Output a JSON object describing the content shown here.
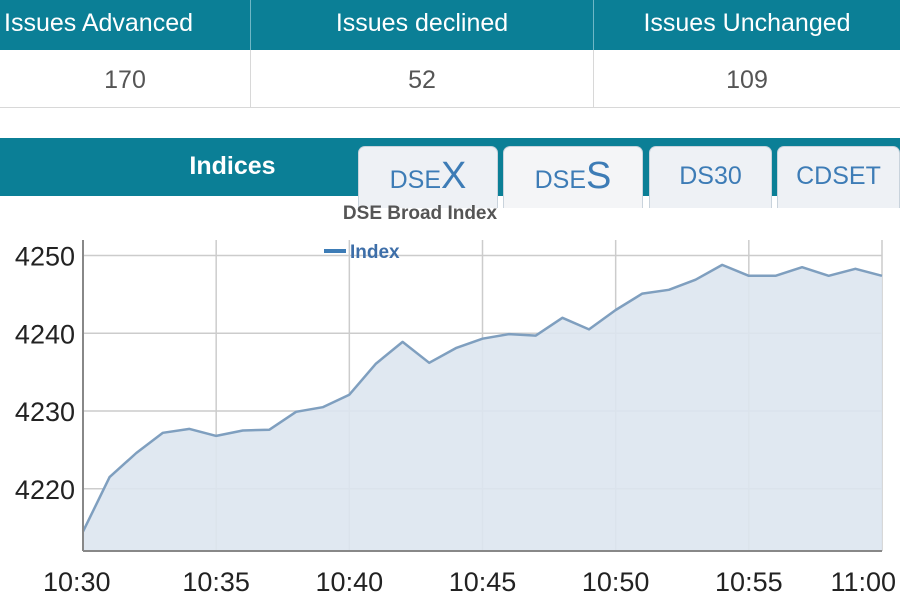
{
  "stats": {
    "headers": [
      "Issues Advanced",
      "Issues declined",
      "Issues Unchanged"
    ],
    "values": [
      "170",
      "52",
      "109"
    ]
  },
  "indices": {
    "title": "Indices",
    "tabs": [
      {
        "label": "DSE",
        "suffix": "X",
        "active": false
      },
      {
        "label": "DSE",
        "suffix": "S",
        "active": true
      },
      {
        "label": "DS30",
        "suffix": "",
        "active": false
      },
      {
        "label": "CDSET",
        "suffix": "",
        "active": false
      }
    ]
  },
  "colors": {
    "header_bg": "#0b7f96",
    "tab_text": "#3d7cb6",
    "series_line": "#7f9fbf",
    "series_fill": "#dde5ef"
  },
  "chart_data": {
    "type": "area",
    "title": "DSE Broad Index",
    "legend": "top",
    "grid": true,
    "xlabel": "",
    "ylabel": "",
    "x_ticks": [
      "10:30",
      "10:35",
      "10:40",
      "10:45",
      "10:50",
      "10:55",
      "11:00"
    ],
    "y_ticks": [
      4220,
      4230,
      4240,
      4250
    ],
    "xlim": [
      "10:30",
      "11:00"
    ],
    "ylim": [
      4212,
      4252
    ],
    "series": [
      {
        "name": "Index",
        "x": [
          "10:30",
          "10:31",
          "10:32",
          "10:33",
          "10:34",
          "10:35",
          "10:36",
          "10:37",
          "10:38",
          "10:39",
          "10:40",
          "10:41",
          "10:42",
          "10:43",
          "10:44",
          "10:45",
          "10:46",
          "10:47",
          "10:48",
          "10:49",
          "10:50",
          "10:51",
          "10:52",
          "10:53",
          "10:54",
          "10:55",
          "10:56",
          "10:57",
          "10:58",
          "10:59",
          "11:00"
        ],
        "values": [
          4214.5,
          4221.5,
          4224.6,
          4227.2,
          4227.7,
          4226.8,
          4227.5,
          4227.6,
          4229.9,
          4230.5,
          4232.1,
          4236.1,
          4238.9,
          4236.2,
          4238.1,
          4239.3,
          4239.9,
          4239.7,
          4242.0,
          4240.5,
          4243.0,
          4245.1,
          4245.6,
          4246.9,
          4248.8,
          4247.4,
          4247.4,
          4248.5,
          4247.4,
          4248.3,
          4247.4
        ]
      }
    ]
  }
}
